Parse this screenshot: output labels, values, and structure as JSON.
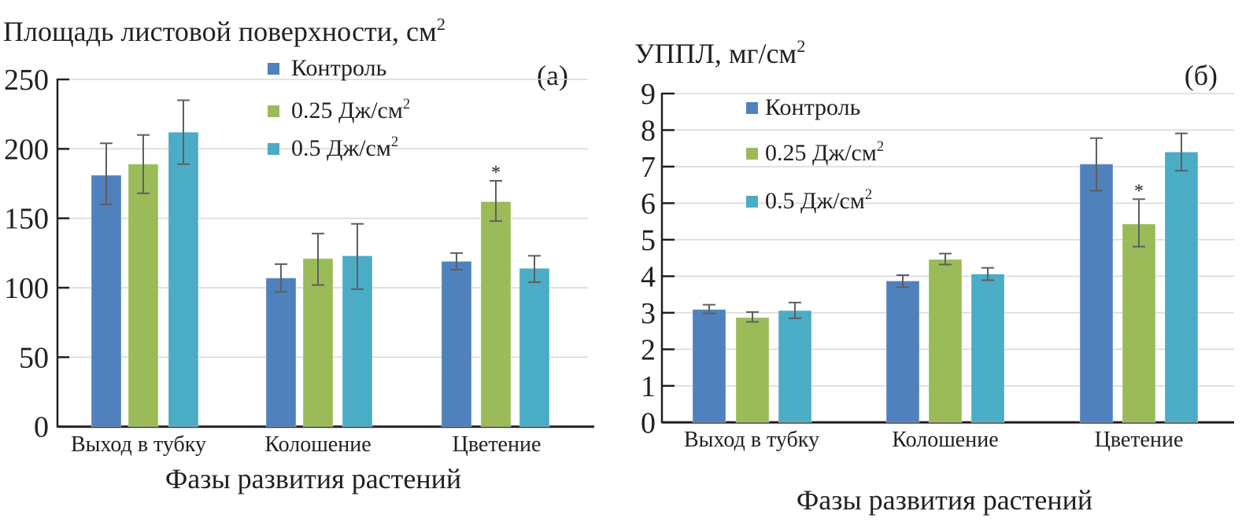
{
  "chart_data": [
    {
      "type": "bar",
      "panel_label": "(a)",
      "title": "Площадь листовой поверхности, см",
      "title_superscript": "2",
      "xlabel": "Фазы развития растений",
      "ylabel": "Площадь листовой поверхности, см²",
      "categories": [
        "Выход в тубку",
        "Колошение",
        "Цветение"
      ],
      "ylim": [
        0,
        250
      ],
      "yticks": [
        0,
        50,
        100,
        150,
        200,
        250
      ],
      "grid": true,
      "legend_position": "top-center",
      "series": [
        {
          "name": "Контроль",
          "name_superscript": "",
          "color": "#4F81BD",
          "values": [
            181,
            107,
            119
          ],
          "err_low": [
            160,
            97,
            113
          ],
          "err_high": [
            204,
            117,
            125
          ]
        },
        {
          "name": "0.25 Дж/см",
          "name_superscript": "2",
          "color": "#9BBB59",
          "values": [
            189,
            121,
            162
          ],
          "err_low": [
            168,
            102,
            148
          ],
          "err_high": [
            210,
            139,
            177
          ]
        },
        {
          "name": "0.5 Дж/см",
          "name_superscript": "2",
          "color": "#4BACC6",
          "values": [
            212,
            123,
            114
          ],
          "err_low": [
            189,
            99,
            104
          ],
          "err_high": [
            235,
            146,
            123
          ]
        }
      ],
      "annotations": [
        {
          "series": 1,
          "category": 2,
          "text": "*"
        }
      ]
    },
    {
      "type": "bar",
      "panel_label": "(б)",
      "title": "УППЛ, мг/см",
      "title_superscript": "2",
      "xlabel": "Фазы развития растений",
      "ylabel": "УППЛ, мг/см²",
      "categories": [
        "Выход в тубку",
        "Колошение",
        "Цветение"
      ],
      "ylim": [
        0,
        9
      ],
      "yticks": [
        0,
        1,
        2,
        3,
        4,
        5,
        6,
        7,
        8,
        9
      ],
      "grid": true,
      "legend_position": "top-left",
      "series": [
        {
          "name": "Контроль",
          "name_superscript": "",
          "color": "#4F81BD",
          "values": [
            3.09,
            3.87,
            7.07
          ],
          "err_low": [
            2.98,
            3.7,
            6.34
          ],
          "err_high": [
            3.22,
            4.03,
            7.78
          ]
        },
        {
          "name": "0.25 Дж/см",
          "name_superscript": "2",
          "color": "#9BBB59",
          "values": [
            2.87,
            4.46,
            5.43
          ],
          "err_low": [
            2.75,
            4.32,
            4.81
          ],
          "err_high": [
            3.02,
            4.62,
            6.11
          ]
        },
        {
          "name": "0.5 Дж/см",
          "name_superscript": "2",
          "color": "#4BACC6",
          "values": [
            3.06,
            4.06,
            7.4
          ],
          "err_low": [
            2.85,
            3.89,
            6.89
          ],
          "err_high": [
            3.28,
            4.23,
            7.91
          ]
        }
      ],
      "annotations": [
        {
          "series": 1,
          "category": 2,
          "text": "*"
        }
      ]
    }
  ]
}
